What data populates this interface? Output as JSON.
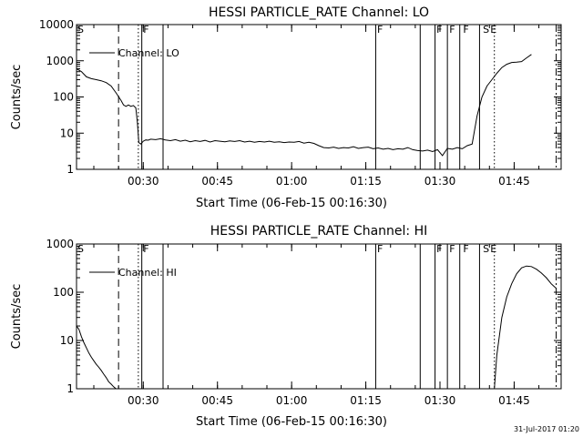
{
  "footer": {
    "timestamp": "31-Jul-2017 01:20"
  },
  "chart_data": [
    {
      "type": "line",
      "title": "HESSI PARTICLE_RATE Channel: LO",
      "xlabel": "Start Time (06-Feb-15 00:16:30)",
      "ylabel": "Counts/sec",
      "x_unit": "minutes after 06-Feb-15 00:16:30",
      "xlim": [
        0,
        98
      ],
      "ylim": [
        1,
        10000
      ],
      "y_scale": "log",
      "x_ticks": [
        {
          "value": 13.5,
          "label": "00:30"
        },
        {
          "value": 28.5,
          "label": "00:45"
        },
        {
          "value": 43.5,
          "label": "01:00"
        },
        {
          "value": 58.5,
          "label": "01:15"
        },
        {
          "value": 73.5,
          "label": "01:30"
        },
        {
          "value": 88.5,
          "label": "01:45"
        }
      ],
      "y_ticks": [
        {
          "value": 1,
          "label": "1"
        },
        {
          "value": 10,
          "label": "10"
        },
        {
          "value": 100,
          "label": "100"
        },
        {
          "value": 1000,
          "label": "1000"
        },
        {
          "value": 10000,
          "label": "10000"
        }
      ],
      "legend": {
        "label": "Channel: LO",
        "position": "top-left"
      },
      "series": [
        {
          "name": "Channel: LO",
          "x": [
            0,
            1,
            2,
            3,
            4,
            5,
            6,
            7,
            8,
            9,
            9.5,
            10,
            10.5,
            11,
            11.5,
            12,
            12.3,
            12.6,
            13,
            13.5,
            14,
            14.5,
            15,
            16,
            17,
            18,
            19,
            20,
            21,
            22,
            23,
            24,
            25,
            26,
            27,
            28,
            29,
            30,
            31,
            32,
            33,
            34,
            35,
            36,
            37,
            38,
            39,
            40,
            41,
            42,
            43,
            44,
            45,
            46,
            47,
            48,
            49,
            50,
            51,
            52,
            53,
            54,
            55,
            56,
            57,
            58,
            59,
            60,
            61,
            62,
            63,
            64,
            65,
            66,
            67,
            68,
            69,
            70,
            71,
            72,
            73,
            74,
            75,
            76,
            77,
            78,
            79,
            80,
            81,
            82,
            83,
            84,
            85,
            86,
            87,
            88,
            89,
            90,
            91,
            92
          ],
          "values": [
            600,
            500,
            360,
            320,
            300,
            280,
            250,
            200,
            130,
            80,
            60,
            55,
            60,
            55,
            58,
            50,
            20,
            5.5,
            5.0,
            6.0,
            6.5,
            6.4,
            6.8,
            6.6,
            7.0,
            6.5,
            6.2,
            6.6,
            6.0,
            6.4,
            5.8,
            6.2,
            5.9,
            6.3,
            5.7,
            6.2,
            6.0,
            5.8,
            6.1,
            5.9,
            6.2,
            5.7,
            6.0,
            5.6,
            5.9,
            5.7,
            6.0,
            5.6,
            5.8,
            5.5,
            5.7,
            5.6,
            5.9,
            5.3,
            5.6,
            5.2,
            4.5,
            4.0,
            3.9,
            4.1,
            3.8,
            4.0,
            3.9,
            4.2,
            3.8,
            4.0,
            4.1,
            3.7,
            3.9,
            3.6,
            3.8,
            3.5,
            3.7,
            3.6,
            4.0,
            3.5,
            3.3,
            3.2,
            3.4,
            3.1,
            3.5,
            2.4,
            3.8,
            3.6,
            4.0,
            3.7,
            4.5,
            5.0,
            30,
            100,
            200,
            300,
            450,
            650,
            800,
            900,
            920,
            950,
            1200,
            1500
          ]
        }
      ],
      "vertical_markers": [
        {
          "x": 8.5,
          "style": "dashed"
        },
        {
          "x": 12.5,
          "style": "dotted"
        },
        {
          "x": 13.2,
          "style": "solid"
        },
        {
          "x": 17.5,
          "style": "solid"
        },
        {
          "x": 60.5,
          "style": "solid"
        },
        {
          "x": 69.5,
          "style": "solid"
        },
        {
          "x": 72.5,
          "style": "solid"
        },
        {
          "x": 75.0,
          "style": "solid"
        },
        {
          "x": 77.5,
          "style": "solid"
        },
        {
          "x": 81.5,
          "style": "solid"
        },
        {
          "x": 84.5,
          "style": "dotted"
        },
        {
          "x": 97.0,
          "style": "dashdot"
        }
      ],
      "flag_labels": [
        {
          "x": 0,
          "label": "S"
        },
        {
          "x": 13.3,
          "label": "F"
        },
        {
          "x": 60.6,
          "label": "F"
        },
        {
          "x": 72.6,
          "label": "F"
        },
        {
          "x": 75.2,
          "label": "F"
        },
        {
          "x": 78.0,
          "label": "F"
        },
        {
          "x": 82.0,
          "label": "S"
        },
        {
          "x": 83.5,
          "label": "E"
        }
      ]
    },
    {
      "type": "line",
      "title": "HESSI PARTICLE_RATE Channel: HI",
      "xlabel": "Start Time (06-Feb-15 00:16:30)",
      "ylabel": "Counts/sec",
      "x_unit": "minutes after 06-Feb-15 00:16:30",
      "xlim": [
        0,
        98
      ],
      "ylim": [
        1,
        1000
      ],
      "y_scale": "log",
      "x_ticks": [
        {
          "value": 13.5,
          "label": "00:30"
        },
        {
          "value": 28.5,
          "label": "00:45"
        },
        {
          "value": 43.5,
          "label": "01:00"
        },
        {
          "value": 58.5,
          "label": "01:15"
        },
        {
          "value": 73.5,
          "label": "01:30"
        },
        {
          "value": 88.5,
          "label": "01:45"
        }
      ],
      "y_ticks": [
        {
          "value": 1,
          "label": "1"
        },
        {
          "value": 10,
          "label": "10"
        },
        {
          "value": 100,
          "label": "100"
        },
        {
          "value": 1000,
          "label": "1000"
        }
      ],
      "legend": {
        "label": "Channel: HI",
        "position": "top-left"
      },
      "series": [
        {
          "name": "Channel: HI",
          "segments": [
            {
              "x": [
                0,
                0.5,
                1,
                1.5,
                2,
                2.5,
                3,
                3.5,
                4,
                4.5,
                5,
                5.5,
                6,
                6.5,
                7,
                7.5,
                8
              ],
              "values": [
                20,
                17,
                12,
                9,
                7,
                5.5,
                4.5,
                3.8,
                3.2,
                2.8,
                2.4,
                2.0,
                1.7,
                1.4,
                1.25,
                1.1,
                1.0
              ]
            },
            {
              "x": [
                84.5,
                85,
                86,
                87,
                88,
                89,
                90,
                91,
                92,
                93,
                94,
                95,
                96,
                97
              ],
              "values": [
                1.0,
                5,
                30,
                80,
                150,
                240,
                320,
                350,
                340,
                300,
                250,
                200,
                150,
                120
              ]
            }
          ]
        }
      ],
      "vertical_markers": [
        {
          "x": 8.5,
          "style": "dashed"
        },
        {
          "x": 12.5,
          "style": "dotted"
        },
        {
          "x": 13.2,
          "style": "solid"
        },
        {
          "x": 17.5,
          "style": "solid"
        },
        {
          "x": 60.5,
          "style": "solid"
        },
        {
          "x": 69.5,
          "style": "solid"
        },
        {
          "x": 72.5,
          "style": "solid"
        },
        {
          "x": 75.0,
          "style": "solid"
        },
        {
          "x": 77.5,
          "style": "solid"
        },
        {
          "x": 81.5,
          "style": "solid"
        },
        {
          "x": 84.5,
          "style": "dotted"
        },
        {
          "x": 97.0,
          "style": "dashdot"
        }
      ],
      "flag_labels": [
        {
          "x": 0,
          "label": "S"
        },
        {
          "x": 13.3,
          "label": "F"
        },
        {
          "x": 60.6,
          "label": "F"
        },
        {
          "x": 72.6,
          "label": "F"
        },
        {
          "x": 75.2,
          "label": "F"
        },
        {
          "x": 78.0,
          "label": "F"
        },
        {
          "x": 82.0,
          "label": "S"
        },
        {
          "x": 83.5,
          "label": "E"
        }
      ]
    }
  ]
}
